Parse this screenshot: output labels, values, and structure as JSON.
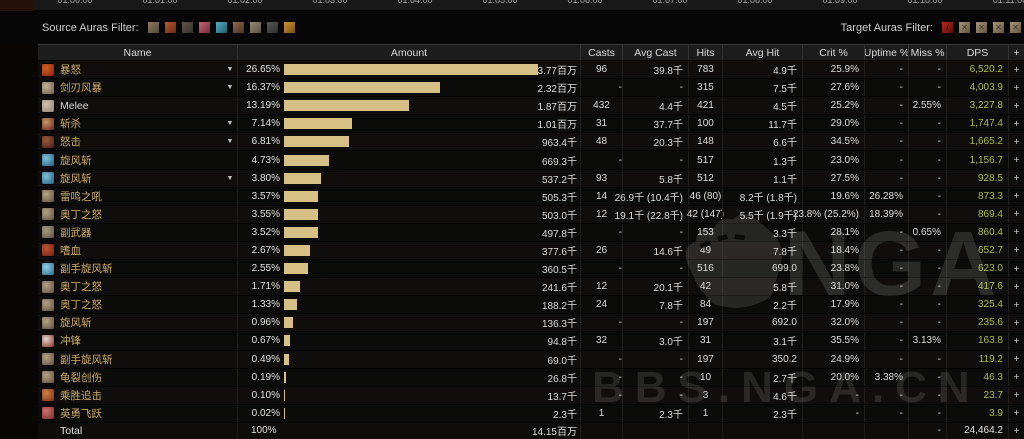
{
  "colors": {
    "bar_fill": "#d6c086",
    "dps_green": "#adbc4f",
    "name_gold": "#cfae6a"
  },
  "timeline": {
    "timestamps": [
      "01:00:00",
      "01:01:00",
      "01:02:00",
      "01:03:00",
      "01:04:00",
      "01:05:00",
      "01:06:00",
      "01:07:00",
      "01:08:00",
      "01:09:00",
      "01:10:00",
      "01:11:00"
    ]
  },
  "filters": {
    "source_label": "Source Auras Filter:",
    "source_icons": [
      {
        "name": "aura-filter-icon-1",
        "c1": "#57493a",
        "c2": "#8d7a62"
      },
      {
        "name": "aura-filter-icon-2",
        "c1": "#6e2a12",
        "c2": "#b55a30"
      },
      {
        "name": "aura-filter-icon-3",
        "c1": "#33312a",
        "c2": "#5c5846"
      },
      {
        "name": "aura-filter-icon-4",
        "c1": "#7a2838",
        "c2": "#c06a74"
      },
      {
        "name": "aura-filter-icon-5",
        "c1": "#1f6070",
        "c2": "#54aec0"
      },
      {
        "name": "aura-filter-icon-6",
        "c1": "#4a3422",
        "c2": "#8a6a4a"
      },
      {
        "name": "aura-filter-icon-7",
        "c1": "#5a5244",
        "c2": "#958a76"
      },
      {
        "name": "aura-filter-icon-8",
        "c1": "#2e2e2e",
        "c2": "#585858"
      },
      {
        "name": "aura-filter-icon-9",
        "c1": "#7a4e14",
        "c2": "#cc9334"
      }
    ],
    "target_label": "Target Auras Filter:",
    "target_icons": [
      {
        "name": "target-aura-filter-icon-1",
        "c1": "#5a0e08",
        "c2": "#b02818",
        "glyph": "/"
      },
      {
        "name": "target-aura-filter-icon-2",
        "c1": "#635543",
        "c2": "#a89577",
        "glyph": "✕"
      },
      {
        "name": "target-aura-filter-icon-3",
        "c1": "#635543",
        "c2": "#a89577",
        "glyph": "✕"
      },
      {
        "name": "target-aura-filter-icon-4",
        "c1": "#635543",
        "c2": "#a89577",
        "glyph": "✕"
      },
      {
        "name": "target-aura-filter-icon-5",
        "c1": "#635543",
        "c2": "#a89577",
        "glyph": "✕"
      }
    ]
  },
  "table": {
    "columns": [
      "Name",
      "Amount",
      "Casts",
      "Avg Cast",
      "Hits",
      "Avg Hit",
      "Crit %",
      "Uptime %",
      "Miss %",
      "DPS",
      "+"
    ],
    "bar_max_pct": 26.65,
    "rows": [
      {
        "name": "暴怒",
        "caret": true,
        "i1": "#8a2012",
        "i2": "#d06020",
        "pct": "26.65%",
        "amount": "3.77百万",
        "casts": "96",
        "avg_cast": "39.8千",
        "hits": "783",
        "avg_hit": "4.9千",
        "crit": "25.9%",
        "uptime": "-",
        "miss": "-",
        "dps": "6,520.2",
        "plus": "+"
      },
      {
        "name": "剑刃风暴",
        "caret": true,
        "i1": "#6b5f49",
        "i2": "#c4b394",
        "pct": "16.37%",
        "amount": "2.32百万",
        "casts": "-",
        "avg_cast": "-",
        "hits": "315",
        "avg_hit": "7.5千",
        "crit": "27.6%",
        "uptime": "-",
        "miss": "-",
        "dps": "4,003.9",
        "plus": "+"
      },
      {
        "name": "Melee",
        "nc": "#d9d9d9",
        "i1": "#8f8272",
        "i2": "#cfc3ae",
        "pct": "13.19%",
        "amount": "1.87百万",
        "casts": "432",
        "avg_cast": "4.4千",
        "hits": "421",
        "avg_hit": "4.5千",
        "crit": "25.2%",
        "uptime": "-",
        "miss": "2.55%",
        "dps": "3,227.8",
        "plus": "+"
      },
      {
        "name": "斩杀",
        "caret": true,
        "i1": "#6e2015",
        "i2": "#c49a6a",
        "pct": "7.14%",
        "amount": "1.01百万",
        "casts": "31",
        "avg_cast": "37.7千",
        "hits": "100",
        "avg_hit": "11.7千",
        "crit": "29.0%",
        "uptime": "-",
        "miss": "-",
        "dps": "1,747.4",
        "plus": "+"
      },
      {
        "name": "怒击",
        "caret": true,
        "i1": "#4a1c14",
        "i2": "#9a5a3a",
        "pct": "6.81%",
        "amount": "963.4千",
        "casts": "48",
        "avg_cast": "20.3千",
        "hits": "148",
        "avg_hit": "6.6千",
        "crit": "34.5%",
        "uptime": "-",
        "miss": "-",
        "dps": "1,665.2",
        "plus": "+"
      },
      {
        "name": "旋风斩",
        "i1": "#1f5a78",
        "i2": "#7ec4de",
        "pct": "4.73%",
        "amount": "669.3千",
        "casts": "-",
        "avg_cast": "-",
        "hits": "517",
        "avg_hit": "1.3千",
        "crit": "23.0%",
        "uptime": "-",
        "miss": "-",
        "dps": "1,156.7",
        "plus": "+"
      },
      {
        "name": "旋风斩",
        "caret": true,
        "i1": "#1f5a78",
        "i2": "#7ec4de",
        "pct": "3.80%",
        "amount": "537.2千",
        "casts": "93",
        "avg_cast": "5.8千",
        "hits": "512",
        "avg_hit": "1.1千",
        "crit": "27.5%",
        "uptime": "-",
        "miss": "-",
        "dps": "928.5",
        "plus": "+"
      },
      {
        "name": "雷鸣之吼",
        "i1": "#5f5140",
        "i2": "#b5a184",
        "pct": "3.57%",
        "amount": "505.3千",
        "casts": "14",
        "avg_cast": "26.9千 (10.4千)",
        "hits": "46 (80)",
        "avg_hit": "8.2千 (1.8千)",
        "crit": "19.6%",
        "uptime": "26.28%",
        "miss": "-",
        "dps": "873.3",
        "plus": "+"
      },
      {
        "name": "奥丁之怒",
        "i1": "#5f5140",
        "i2": "#b5a184",
        "pct": "3.55%",
        "amount": "503.0千",
        "casts": "12",
        "avg_cast": "19.1千 (22.8千)",
        "hits": "42 (147)",
        "avg_hit": "5.5千 (1.9千)",
        "crit": "23.8% (25.2%)",
        "uptime": "18.39%",
        "miss": "-",
        "dps": "869.4",
        "plus": "+"
      },
      {
        "name": "副武器",
        "i1": "#5a5244",
        "i2": "#a89a82",
        "pct": "3.52%",
        "amount": "497.8千",
        "casts": "-",
        "avg_cast": "-",
        "hits": "153",
        "avg_hit": "3.3千",
        "crit": "28.1%",
        "uptime": "-",
        "miss": "0.65%",
        "dps": "860.4",
        "plus": "+"
      },
      {
        "name": "嗜血",
        "i1": "#6e1f10",
        "i2": "#c05530",
        "pct": "2.67%",
        "amount": "377.6千",
        "casts": "26",
        "avg_cast": "14.6千",
        "hits": "49",
        "avg_hit": "7.8千",
        "crit": "18.4%",
        "uptime": "-",
        "miss": "-",
        "dps": "652.7",
        "plus": "+"
      },
      {
        "name": "副手旋风斩",
        "i1": "#2a6a8a",
        "i2": "#8ed0e8",
        "pct": "2.55%",
        "amount": "360.5千",
        "casts": "-",
        "avg_cast": "-",
        "hits": "516",
        "avg_hit": "699.0",
        "crit": "23.8%",
        "uptime": "-",
        "miss": "-",
        "dps": "623.0",
        "plus": "+"
      },
      {
        "name": "奥丁之怒",
        "i1": "#5f5140",
        "i2": "#b5a184",
        "pct": "1.71%",
        "amount": "241.6千",
        "casts": "12",
        "avg_cast": "20.1千",
        "hits": "42",
        "avg_hit": "5.8千",
        "crit": "31.0%",
        "uptime": "-",
        "miss": "-",
        "dps": "417.6",
        "plus": "+"
      },
      {
        "name": "奥丁之怒",
        "i1": "#5f5140",
        "i2": "#b5a184",
        "pct": "1.33%",
        "amount": "188.2千",
        "casts": "24",
        "avg_cast": "7.8千",
        "hits": "84",
        "avg_hit": "2.2千",
        "crit": "17.9%",
        "uptime": "-",
        "miss": "-",
        "dps": "325.4",
        "plus": "+"
      },
      {
        "name": "旋风斩",
        "i1": "#5f5140",
        "i2": "#b5a184",
        "pct": "0.96%",
        "amount": "136.3千",
        "casts": "-",
        "avg_cast": "-",
        "hits": "197",
        "avg_hit": "692.0",
        "crit": "32.0%",
        "uptime": "-",
        "miss": "-",
        "dps": "235.6",
        "plus": "+"
      },
      {
        "name": "冲锋",
        "i1": "#8a2a1a",
        "i2": "#e0d8d0",
        "pct": "0.67%",
        "amount": "94.8千",
        "casts": "32",
        "avg_cast": "3.0千",
        "hits": "31",
        "avg_hit": "3.1千",
        "crit": "35.5%",
        "uptime": "-",
        "miss": "3.13%",
        "dps": "163.8",
        "plus": "+"
      },
      {
        "name": "副手旋风斩",
        "i1": "#5f5140",
        "i2": "#b5a184",
        "pct": "0.49%",
        "amount": "69.0千",
        "casts": "-",
        "avg_cast": "-",
        "hits": "197",
        "avg_hit": "350.2",
        "crit": "24.9%",
        "uptime": "-",
        "miss": "-",
        "dps": "119.2",
        "plus": "+"
      },
      {
        "name": "龟裂创伤",
        "i1": "#5f5140",
        "i2": "#b5a184",
        "pct": "0.19%",
        "amount": "26.8千",
        "casts": "-",
        "avg_cast": "-",
        "hits": "10",
        "avg_hit": "2.7千",
        "crit": "20.0%",
        "uptime": "3.38%",
        "miss": "-",
        "dps": "46.3",
        "plus": "+"
      },
      {
        "name": "乘胜追击",
        "i1": "#7a3015",
        "i2": "#d08040",
        "pct": "0.10%",
        "amount": "13.7千",
        "casts": "-",
        "avg_cast": "-",
        "hits": "3",
        "avg_hit": "4.6千",
        "crit": "-",
        "uptime": "-",
        "miss": "-",
        "dps": "23.7",
        "plus": "+"
      },
      {
        "name": "英勇飞跃",
        "i1": "#7a2a2a",
        "i2": "#d07070",
        "pct": "0.02%",
        "amount": "2.3千",
        "casts": "1",
        "avg_cast": "2.3千",
        "hits": "1",
        "avg_hit": "2.3千",
        "crit": "-",
        "uptime": "-",
        "miss": "-",
        "dps": "3.9",
        "plus": "+"
      }
    ],
    "total": {
      "name": "Total",
      "pct": "100%",
      "amount": "14.15百万",
      "casts": "",
      "avg_cast": "",
      "hits": "",
      "avg_hit": "",
      "crit": "",
      "uptime": "",
      "miss": "-",
      "dps": "24,464.2",
      "plus": "+"
    }
  },
  "watermark": {
    "text_main": "NGA",
    "text_sub": "BBS.NGA.CN"
  }
}
